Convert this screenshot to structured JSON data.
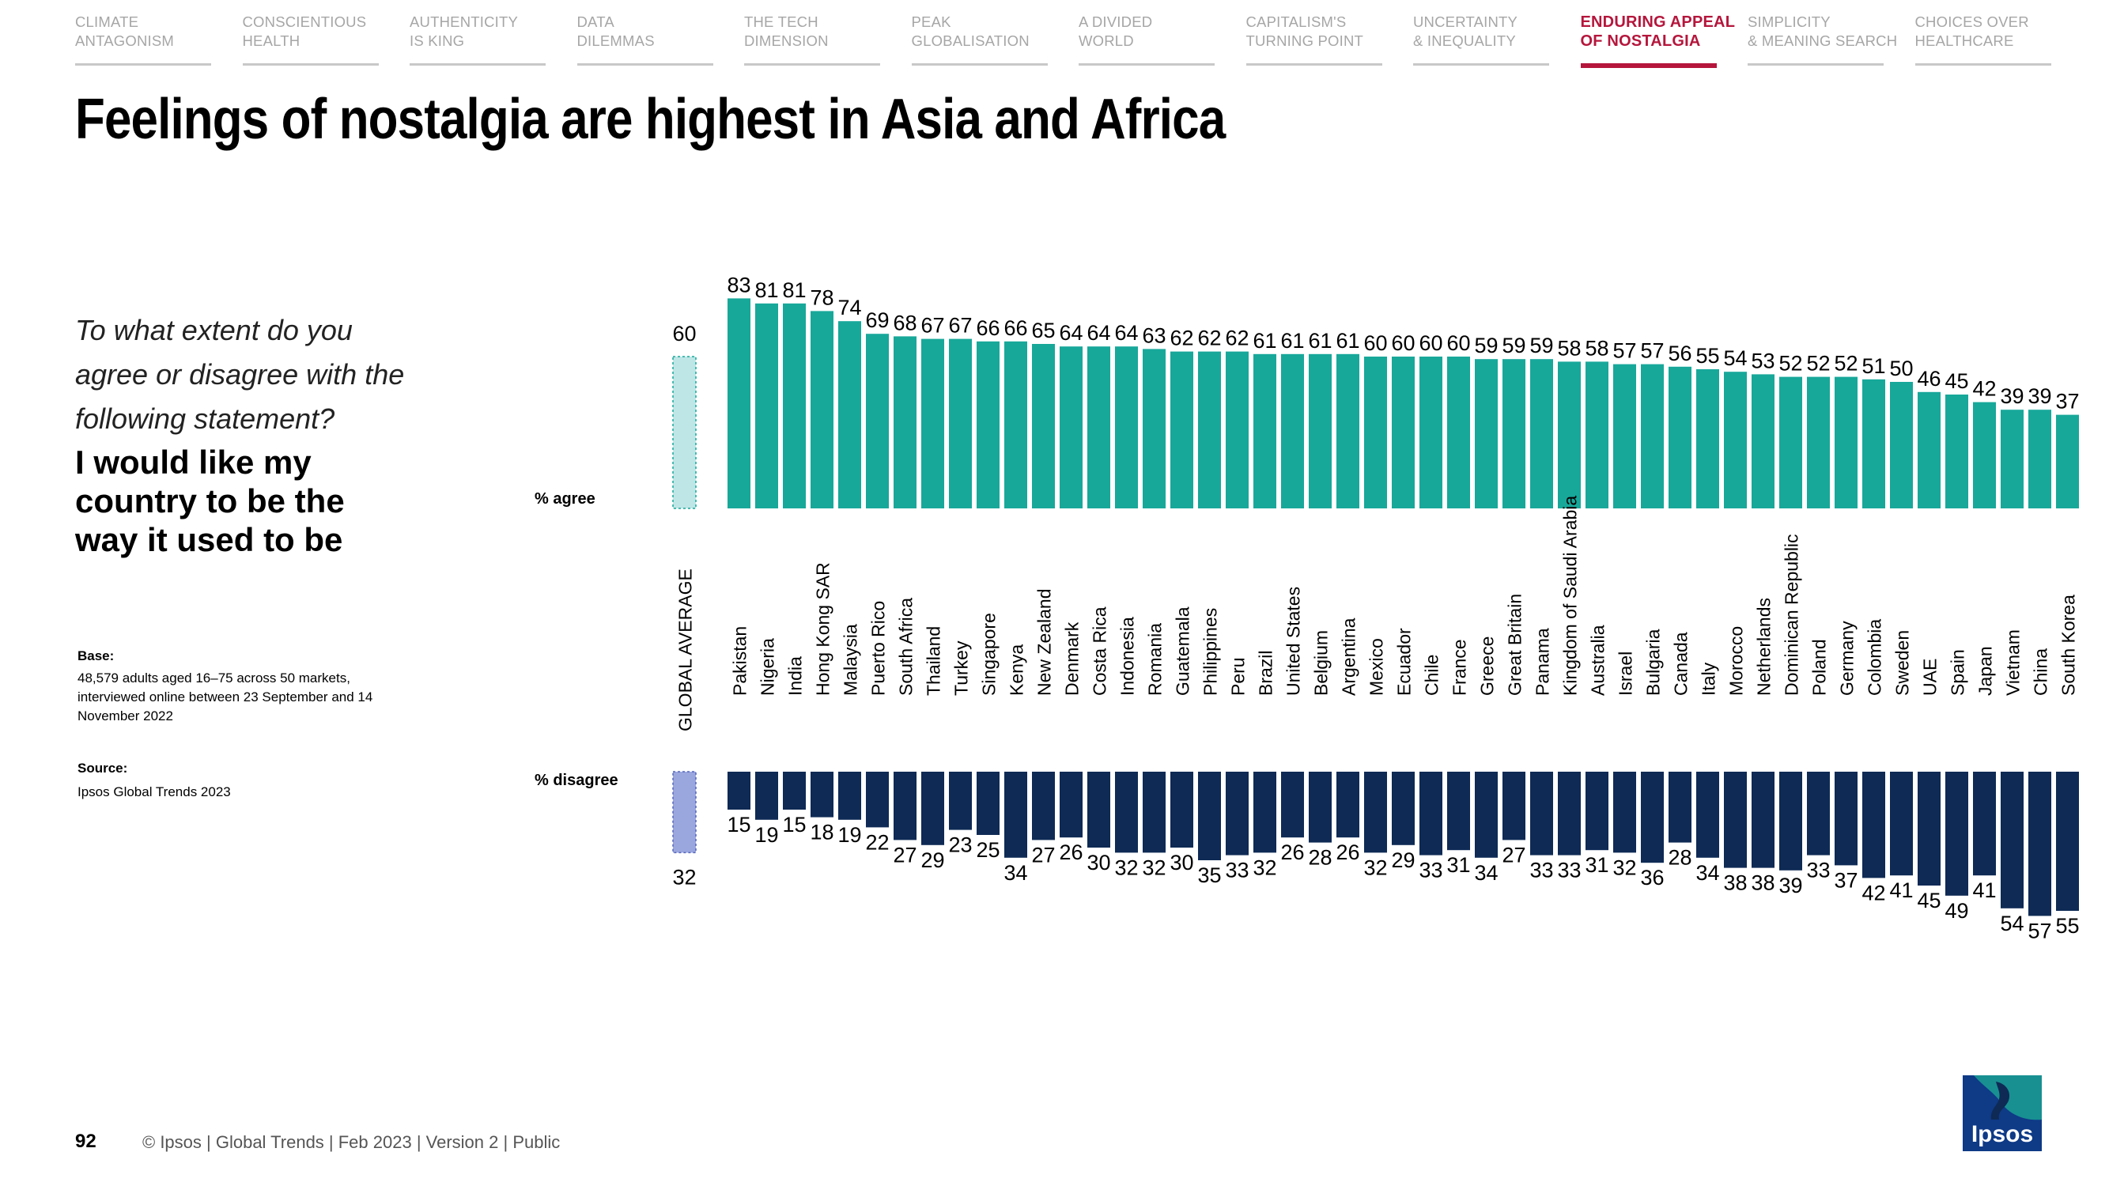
{
  "nav": [
    {
      "line1": "CLIMATE",
      "line2": "ANTAGONISM",
      "active": false
    },
    {
      "line1": "CONSCIENTIOUS",
      "line2": "HEALTH",
      "active": false
    },
    {
      "line1": "AUTHENTICITY",
      "line2": "IS KING",
      "active": false
    },
    {
      "line1": "DATA",
      "line2": "DILEMMAS",
      "active": false
    },
    {
      "line1": "THE TECH",
      "line2": "DIMENSION",
      "active": false
    },
    {
      "line1": "PEAK",
      "line2": "GLOBALISATION",
      "active": false
    },
    {
      "line1": "A DIVIDED",
      "line2": "WORLD",
      "active": false
    },
    {
      "line1": "CAPITALISM'S",
      "line2": "TURNING POINT",
      "active": false
    },
    {
      "line1": "UNCERTAINTY",
      "line2": "& INEQUALITY",
      "active": false
    },
    {
      "line1": "ENDURING APPEAL",
      "line2": "OF NOSTALGIA",
      "active": true
    },
    {
      "line1": "SIMPLICITY",
      "line2": "& MEANING SEARCH",
      "active": false
    },
    {
      "line1": "CHOICES OVER",
      "line2": "HEALTHCARE",
      "active": false
    }
  ],
  "title": "Feelings of nostalgia are highest in Asia and Africa",
  "question_lines": [
    "To what extent do you",
    "agree or disagree with the",
    "following statement?"
  ],
  "statement_lines": [
    "I would like my",
    "country to be the",
    "way it used to be"
  ],
  "base_heading": "Base:",
  "base_lines": [
    "48,579 adults aged 16–75 across 50 markets,",
    "interviewed online between 23 September and 14",
    "November 2022"
  ],
  "source_heading": "Source:",
  "source_text": "Ipsos Global Trends 2023",
  "footer": {
    "page_number": "92",
    "copyright": "© Ipsos | Global Trends | Feb 2023 | Version 2 | Public"
  },
  "logo_text": "Ipsos",
  "colors": {
    "agree": "#17a89a",
    "disagree": "#0e2a55",
    "average_agree": "#bfe6e6",
    "average_disagree": "#9aa6de",
    "accent": "#b5163c"
  },
  "chart_data": {
    "type": "bar",
    "agree_label": "% agree",
    "disagree_label": "% disagree",
    "average_label": "GLOBAL AVERAGE",
    "average": {
      "agree": 60,
      "disagree": 32
    },
    "categories": [
      "Pakistan",
      "Nigeria",
      "India",
      "Hong Kong SAR",
      "Malaysia",
      "Puerto Rico",
      "South Africa",
      "Thailand",
      "Turkey",
      "Singapore",
      "Kenya",
      "New Zealand",
      "Denmark",
      "Costa Rica",
      "Indonesia",
      "Romania",
      "Guatemala",
      "Philippines",
      "Peru",
      "Brazil",
      "United States",
      "Belgium",
      "Argentina",
      "Mexico",
      "Ecuador",
      "Chile",
      "France",
      "Greece",
      "Great Britain",
      "Panama",
      "Kingdom of Saudi Arabia",
      "Australia",
      "Israel",
      "Bulgaria",
      "Canada",
      "Italy",
      "Morocco",
      "Netherlands",
      "Dominican Republic",
      "Poland",
      "Germany",
      "Colombia",
      "Sweden",
      "UAE",
      "Spain",
      "Japan",
      "Vietnam",
      "China",
      "South Korea"
    ],
    "series": [
      {
        "name": "% agree",
        "values": [
          83,
          81,
          81,
          78,
          74,
          69,
          68,
          67,
          67,
          66,
          66,
          65,
          64,
          64,
          64,
          63,
          62,
          62,
          62,
          61,
          61,
          61,
          61,
          60,
          60,
          60,
          60,
          59,
          59,
          59,
          58,
          58,
          57,
          57,
          56,
          55,
          54,
          53,
          52,
          52,
          52,
          51,
          50,
          46,
          45,
          42,
          39,
          39,
          37
        ]
      },
      {
        "name": "% disagree",
        "values": [
          15,
          19,
          15,
          18,
          19,
          22,
          27,
          29,
          23,
          25,
          34,
          27,
          26,
          30,
          32,
          32,
          30,
          35,
          33,
          32,
          26,
          28,
          26,
          32,
          29,
          33,
          31,
          34,
          27,
          33,
          33,
          31,
          32,
          36,
          28,
          34,
          38,
          38,
          39,
          33,
          37,
          42,
          41,
          45,
          49,
          41,
          54,
          57,
          55
        ]
      }
    ]
  }
}
